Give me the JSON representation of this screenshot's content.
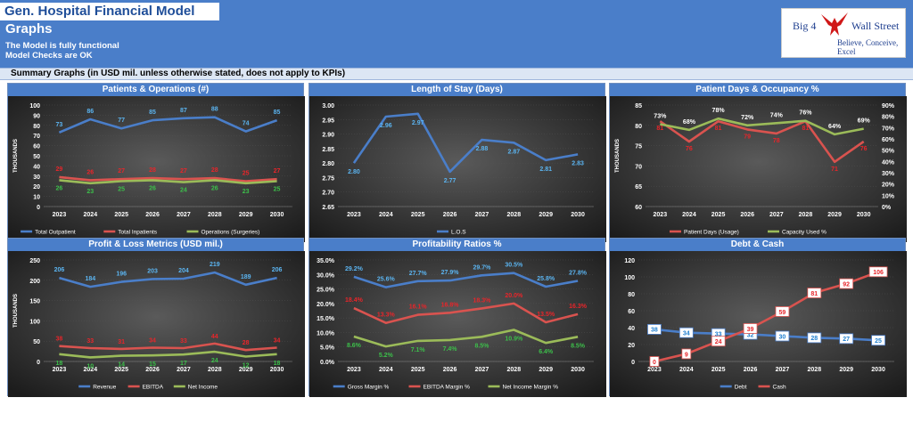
{
  "header": {
    "title": "Gen. Hospital Financial Model",
    "subtitle": "Graphs",
    "note_functional": "The Model is fully functional",
    "note_checks": "Model Checks are OK",
    "logo_left": "Big 4",
    "logo_right": "Wall Street",
    "logo_tagline": "Believe, Conceive, Excel",
    "brand_color": "#4a7ec9"
  },
  "summary_text": "Summary Graphs (in USD mil. unless otherwise stated, does not apply to KPIs)",
  "chart_data": [
    {
      "id": "c1",
      "type": "line",
      "title": "Patients & Operations (#)",
      "ylabel": "THOUSANDS",
      "categories": [
        "2023",
        "2024",
        "2025",
        "2026",
        "2027",
        "2028",
        "2029",
        "2030"
      ],
      "ylim": [
        0,
        100
      ],
      "yticks": [
        0,
        10,
        20,
        30,
        40,
        50,
        60,
        70,
        80,
        90,
        100
      ],
      "series": [
        {
          "name": "Total Outpatient",
          "color": "#4a7ec9",
          "label_color": "#5bb4f0",
          "values": [
            73,
            86,
            77,
            85,
            87,
            88,
            74,
            85
          ]
        },
        {
          "name": "Total Inpatients",
          "color": "#d9534f",
          "label_color": "#e8252a",
          "values": [
            29,
            26,
            27,
            28,
            27,
            28,
            25,
            27
          ]
        },
        {
          "name": "Operations (Surgeries)",
          "color": "#9bbb59",
          "label_color": "#3cbf4a",
          "values": [
            26,
            23,
            25,
            26,
            24,
            26,
            23,
            25
          ]
        }
      ]
    },
    {
      "id": "c2",
      "type": "line",
      "title": "Length of Stay (Days)",
      "categories": [
        "2023",
        "2024",
        "2025",
        "2026",
        "2027",
        "2028",
        "2029",
        "2030"
      ],
      "ylim": [
        2.65,
        3.0
      ],
      "yticks": [
        "2.65",
        "2.70",
        "2.75",
        "2.80",
        "2.85",
        "2.90",
        "2.95",
        "3.00"
      ],
      "series": [
        {
          "name": "L.O.S",
          "color": "#4a7ec9",
          "label_color": "#5bb4f0",
          "values": [
            2.8,
            2.96,
            2.97,
            2.77,
            2.88,
            2.87,
            2.81,
            2.83
          ],
          "labels": [
            "2.80",
            "2.96",
            "2.97",
            "2.77",
            "2.88",
            "2.87",
            "2.81",
            "2.83"
          ]
        }
      ]
    },
    {
      "id": "c3",
      "type": "line",
      "title": "Patient Days & Occupancy %",
      "ylabel": "THOUSANDS",
      "categories": [
        "2023",
        "2024",
        "2025",
        "2026",
        "2027",
        "2028",
        "2029",
        "2030"
      ],
      "ylim": [
        60,
        85
      ],
      "yticks": [
        60,
        65,
        70,
        75,
        80,
        85
      ],
      "y2lim": [
        0,
        90
      ],
      "y2ticks": [
        "0%",
        "10%",
        "20%",
        "30%",
        "40%",
        "50%",
        "60%",
        "70%",
        "80%",
        "90%"
      ],
      "series": [
        {
          "name": "Patient Days (Usage)",
          "color": "#d9534f",
          "label_color": "#e8252a",
          "axis": "left",
          "values": [
            81,
            76,
            81,
            79,
            78,
            81,
            71,
            76
          ]
        },
        {
          "name": "Capacity Used %",
          "color": "#9bbb59",
          "label_color": "#ffffff",
          "axis": "right",
          "values": [
            73,
            68,
            78,
            72,
            74,
            76,
            64,
            69
          ],
          "labels": [
            "73%",
            "68%",
            "78%",
            "72%",
            "74%",
            "76%",
            "64%",
            "69%"
          ]
        }
      ]
    },
    {
      "id": "c4",
      "type": "line",
      "title": "Profit & Loss Metrics (USD mil.)",
      "ylabel": "THOUSANDS",
      "categories": [
        "2023",
        "2024",
        "2025",
        "2026",
        "2027",
        "2028",
        "2029",
        "2030"
      ],
      "ylim": [
        0,
        250
      ],
      "yticks": [
        0,
        50,
        100,
        150,
        200,
        250
      ],
      "series": [
        {
          "name": "Revenue",
          "color": "#4a7ec9",
          "label_color": "#5bb4f0",
          "values": [
            206,
            184,
            196,
            203,
            204,
            219,
            189,
            206
          ]
        },
        {
          "name": "EBITDA",
          "color": "#d9534f",
          "label_color": "#e8252a",
          "values": [
            38,
            33,
            31,
            34,
            33,
            44,
            28,
            34
          ]
        },
        {
          "name": "Net Income",
          "color": "#9bbb59",
          "label_color": "#3cbf4a",
          "values": [
            18,
            10,
            14,
            15,
            17,
            24,
            12,
            18
          ]
        }
      ]
    },
    {
      "id": "c5",
      "type": "line",
      "title": "Profitability Ratios %",
      "categories": [
        "2023",
        "2024",
        "2025",
        "2026",
        "2027",
        "2028",
        "2029",
        "2030"
      ],
      "ylim": [
        0,
        35
      ],
      "yticks": [
        "0.0%",
        "5.0%",
        "10.0%",
        "15.0%",
        "20.0%",
        "25.0%",
        "30.0%",
        "35.0%"
      ],
      "series": [
        {
          "name": "Gross Margin %",
          "color": "#4a7ec9",
          "label_color": "#5bb4f0",
          "values": [
            29.2,
            25.6,
            27.7,
            27.9,
            29.7,
            30.5,
            25.8,
            27.8
          ],
          "labels": [
            "29.2%",
            "25.6%",
            "27.7%",
            "27.9%",
            "29.7%",
            "30.5%",
            "25.8%",
            "27.8%"
          ]
        },
        {
          "name": "EBITDA Margin %",
          "color": "#d9534f",
          "label_color": "#e8252a",
          "values": [
            18.4,
            13.3,
            16.1,
            16.8,
            18.3,
            20.0,
            13.5,
            16.3
          ],
          "labels": [
            "18.4%",
            "13.3%",
            "16.1%",
            "16.8%",
            "18.3%",
            "20.0%",
            "13.5%",
            "16.3%"
          ]
        },
        {
          "name": "Net Income Margin %",
          "color": "#9bbb59",
          "label_color": "#3cbf4a",
          "values": [
            8.6,
            5.2,
            7.1,
            7.4,
            8.5,
            10.9,
            6.4,
            8.5
          ],
          "labels": [
            "8.6%",
            "5.2%",
            "7.1%",
            "7.4%",
            "8.5%",
            "10.9%",
            "6.4%",
            "8.5%"
          ]
        }
      ]
    },
    {
      "id": "c6",
      "type": "line",
      "title": "Debt & Cash",
      "categories": [
        "2023",
        "2024",
        "2025",
        "2026",
        "2027",
        "2028",
        "2029",
        "2030"
      ],
      "ylim": [
        0,
        120
      ],
      "yticks": [
        0,
        20,
        40,
        60,
        80,
        100,
        120
      ],
      "series": [
        {
          "name": "Debt",
          "color": "#4a7ec9",
          "label_color": "#1f7fd0",
          "boxed": true,
          "values": [
            38,
            34,
            33,
            32,
            30,
            28,
            27,
            25
          ]
        },
        {
          "name": "Cash",
          "color": "#d9534f",
          "label_color": "#e8252a",
          "boxed": true,
          "values": [
            0,
            9,
            24,
            39,
            59,
            81,
            92,
            106
          ]
        }
      ]
    }
  ]
}
